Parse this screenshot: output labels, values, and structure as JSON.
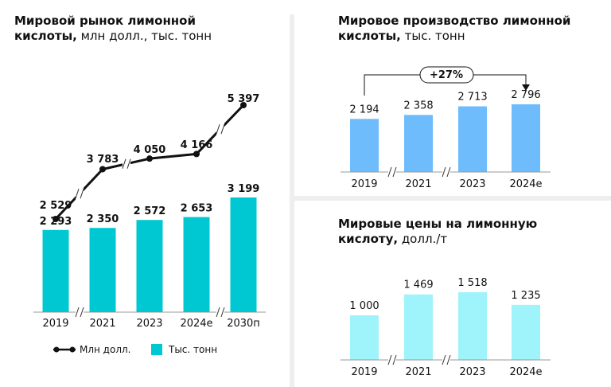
{
  "colors": {
    "market_bar": "#00c8d2",
    "market_line": "#111111",
    "production_bar": "#6ebcfb",
    "price_bar": "#9ff3fa",
    "divider": "#eeeeee"
  },
  "chart_data": [
    {
      "id": "market",
      "type": "bar+line",
      "title_bold_line1": "Мировой рынок лимонной",
      "title_bold_line2": "кислоты,",
      "title_unit": " млн долл., тыс. тонн",
      "categories": [
        "2019",
        "2021",
        "2023",
        "2024е",
        "2030п"
      ],
      "series": [
        {
          "name": "Млн долл.",
          "kind": "line",
          "values": [
            2529,
            3783,
            4050,
            4166,
            5397
          ],
          "labels": [
            "2 529",
            "3 783",
            "4 050",
            "4 166",
            "5 397"
          ]
        },
        {
          "name": "Тыс. тонн",
          "kind": "bar",
          "values": [
            2293,
            2350,
            2572,
            2653,
            3199
          ],
          "labels": [
            "2 293",
            "2 350",
            "2 572",
            "2 653",
            "3 199"
          ]
        }
      ]
    },
    {
      "id": "production",
      "type": "bar",
      "title_bold_line1": "Мировое производство лимонной",
      "title_bold_line2": "кислоты,",
      "title_unit": " тыс. тонн",
      "categories": [
        "2019",
        "2021",
        "2023",
        "2024е"
      ],
      "values": [
        2194,
        2358,
        2713,
        2796
      ],
      "labels": [
        "2 194",
        "2 358",
        "2 713",
        "2 796"
      ],
      "annotation": "+27%"
    },
    {
      "id": "prices",
      "type": "bar",
      "title_bold_line1": "Мировые цены на лимонную",
      "title_bold_line2": "кислоту,",
      "title_unit": " долл./т",
      "categories": [
        "2019",
        "2021",
        "2023",
        "2024е"
      ],
      "values": [
        1000,
        1469,
        1518,
        1235
      ],
      "labels": [
        "1 000",
        "1 469",
        "1 518",
        "1 235"
      ]
    }
  ]
}
